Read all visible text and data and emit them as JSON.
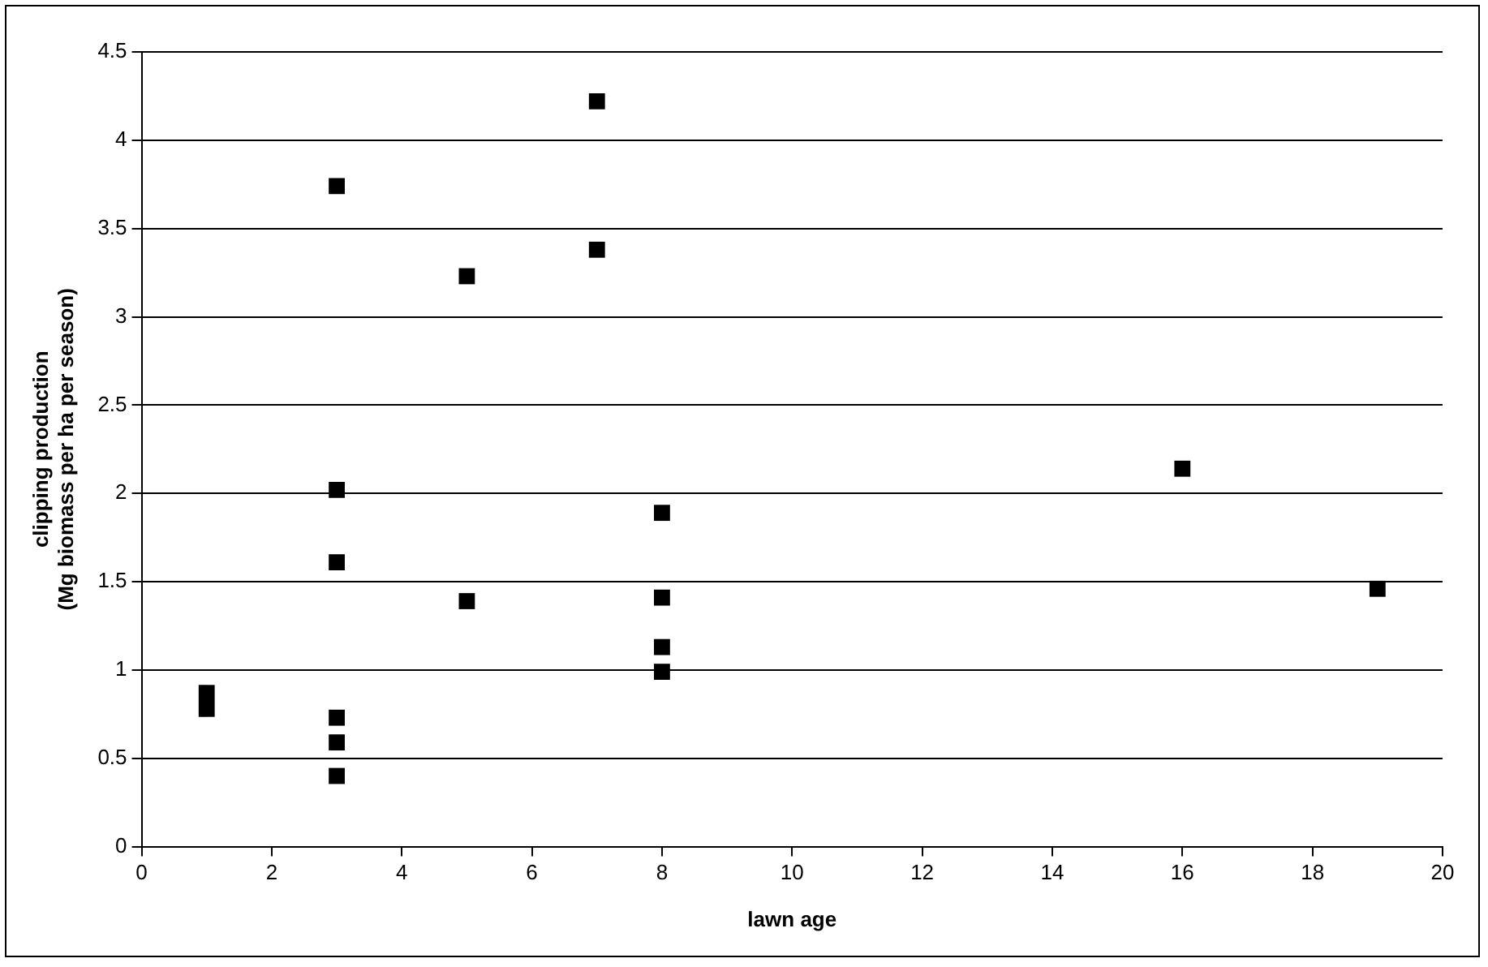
{
  "chart_data": {
    "type": "scatter",
    "xlabel": "lawn age",
    "ylabel": "clipping production\n(Mg biomass per ha per season)",
    "x": [
      1,
      1,
      3,
      3,
      3,
      3,
      3,
      3,
      5,
      5,
      7,
      7,
      8,
      8,
      8,
      8,
      16,
      19
    ],
    "values": [
      0.87,
      0.78,
      3.74,
      2.02,
      1.61,
      0.73,
      0.59,
      0.4,
      3.23,
      1.39,
      4.22,
      3.38,
      1.89,
      1.41,
      1.13,
      0.99,
      2.14,
      1.46
    ],
    "color": "#000000",
    "marker": "square",
    "xlim": [
      0,
      20
    ],
    "xticks": [
      0,
      2,
      4,
      6,
      8,
      10,
      12,
      14,
      16,
      18,
      20
    ],
    "ylim": [
      0,
      4.5
    ],
    "yticks": [
      0,
      0.5,
      1,
      1.5,
      2,
      2.5,
      3,
      3.5,
      4,
      4.5
    ],
    "grid": "y",
    "legend": false
  }
}
